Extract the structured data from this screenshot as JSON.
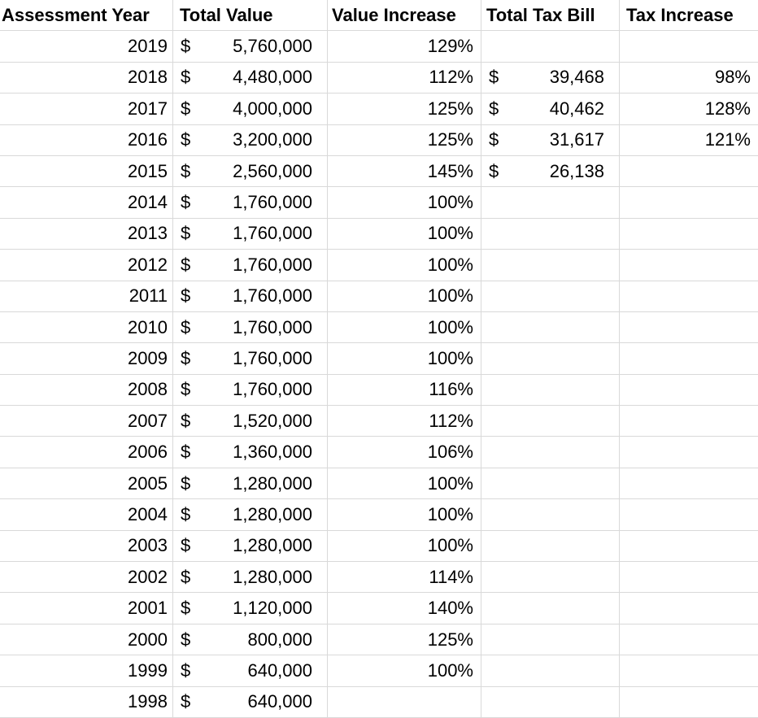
{
  "table": {
    "currency_symbol": "$",
    "columns": [
      {
        "label": "Assessment Year"
      },
      {
        "label": "Total Value"
      },
      {
        "label": "Value Increase"
      },
      {
        "label": "Total Tax Bill"
      },
      {
        "label": "Tax Increase"
      }
    ],
    "rows": [
      {
        "year": "2019",
        "total_value": "5,760,000",
        "value_increase": "129%",
        "tax_bill": "",
        "tax_increase": ""
      },
      {
        "year": "2018",
        "total_value": "4,480,000",
        "value_increase": "112%",
        "tax_bill": "39,468",
        "tax_increase": "98%"
      },
      {
        "year": "2017",
        "total_value": "4,000,000",
        "value_increase": "125%",
        "tax_bill": "40,462",
        "tax_increase": "128%"
      },
      {
        "year": "2016",
        "total_value": "3,200,000",
        "value_increase": "125%",
        "tax_bill": "31,617",
        "tax_increase": "121%"
      },
      {
        "year": "2015",
        "total_value": "2,560,000",
        "value_increase": "145%",
        "tax_bill": "26,138",
        "tax_increase": ""
      },
      {
        "year": "2014",
        "total_value": "1,760,000",
        "value_increase": "100%",
        "tax_bill": "",
        "tax_increase": ""
      },
      {
        "year": "2013",
        "total_value": "1,760,000",
        "value_increase": "100%",
        "tax_bill": "",
        "tax_increase": ""
      },
      {
        "year": "2012",
        "total_value": "1,760,000",
        "value_increase": "100%",
        "tax_bill": "",
        "tax_increase": ""
      },
      {
        "year": "2011",
        "total_value": "1,760,000",
        "value_increase": "100%",
        "tax_bill": "",
        "tax_increase": ""
      },
      {
        "year": "2010",
        "total_value": "1,760,000",
        "value_increase": "100%",
        "tax_bill": "",
        "tax_increase": ""
      },
      {
        "year": "2009",
        "total_value": "1,760,000",
        "value_increase": "100%",
        "tax_bill": "",
        "tax_increase": ""
      },
      {
        "year": "2008",
        "total_value": "1,760,000",
        "value_increase": "116%",
        "tax_bill": "",
        "tax_increase": ""
      },
      {
        "year": "2007",
        "total_value": "1,520,000",
        "value_increase": "112%",
        "tax_bill": "",
        "tax_increase": ""
      },
      {
        "year": "2006",
        "total_value": "1,360,000",
        "value_increase": "106%",
        "tax_bill": "",
        "tax_increase": ""
      },
      {
        "year": "2005",
        "total_value": "1,280,000",
        "value_increase": "100%",
        "tax_bill": "",
        "tax_increase": ""
      },
      {
        "year": "2004",
        "total_value": "1,280,000",
        "value_increase": "100%",
        "tax_bill": "",
        "tax_increase": ""
      },
      {
        "year": "2003",
        "total_value": "1,280,000",
        "value_increase": "100%",
        "tax_bill": "",
        "tax_increase": ""
      },
      {
        "year": "2002",
        "total_value": "1,280,000",
        "value_increase": "114%",
        "tax_bill": "",
        "tax_increase": ""
      },
      {
        "year": "2001",
        "total_value": "1,120,000",
        "value_increase": "140%",
        "tax_bill": "",
        "tax_increase": ""
      },
      {
        "year": "2000",
        "total_value": "800,000",
        "value_increase": "125%",
        "tax_bill": "",
        "tax_increase": ""
      },
      {
        "year": "1999",
        "total_value": "640,000",
        "value_increase": "100%",
        "tax_bill": "",
        "tax_increase": ""
      },
      {
        "year": "1998",
        "total_value": "640,000",
        "value_increase": "",
        "tax_bill": "",
        "tax_increase": ""
      }
    ]
  }
}
